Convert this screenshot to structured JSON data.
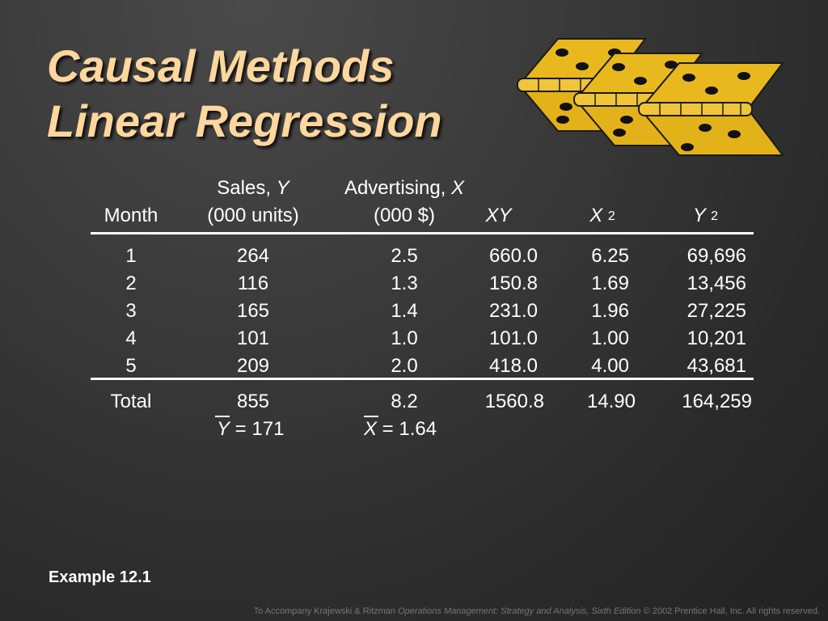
{
  "slide": {
    "title_line1": "Causal Methods",
    "title_line2": "Linear Regression",
    "example": "Example 12.1",
    "footer_prefix": "To Accompany Krajewski & Ritzman ",
    "footer_book": "Operations Management: Strategy and Analysis, Sixth Edition",
    "footer_suffix": " © 2002 Prentice Hall, Inc. All rights reserved.",
    "colors": {
      "title": "#ffd79e",
      "hinge_fill": "#e8b81e",
      "background": "#3b3b3b"
    },
    "hinge_icon": "hinge-icon"
  },
  "table": {
    "headers": {
      "month": "Month",
      "sales_line1": "Sales, ",
      "sales_var": "Y",
      "sales_line2": "(000 units)",
      "adv_line1": "Advertising, ",
      "adv_var": "X",
      "adv_line2": "(000 $)",
      "xy": "XY",
      "x2_base": "X ",
      "x2_exp": "2",
      "y2_base": "Y ",
      "y2_exp": "2"
    },
    "rows": [
      {
        "month": "1",
        "sales": "264",
        "adv": "2.5",
        "xy": "660.0",
        "x2": "6.25",
        "y2": "69,696"
      },
      {
        "month": "2",
        "sales": "116",
        "adv": "1.3",
        "xy": "150.8",
        "x2": "1.69",
        "y2": "13,456"
      },
      {
        "month": "3",
        "sales": "165",
        "adv": "1.4",
        "xy": "231.0",
        "x2": "1.96",
        "y2": "27,225"
      },
      {
        "month": "4",
        "sales": "101",
        "adv": "1.0",
        "xy": "101.0",
        "x2": "1.00",
        "y2": "10,201"
      },
      {
        "month": "5",
        "sales": "209",
        "adv": "2.0",
        "xy": "418.0",
        "x2": "4.00",
        "y2": "43,681"
      }
    ],
    "totals": {
      "label": "Total",
      "sales": "855",
      "adv": "8.2",
      "xy": "1560.8",
      "x2": "14.90",
      "y2": "164,259"
    },
    "means": {
      "y_var": "Y",
      "y_value": " = 171",
      "x_var": "X",
      "x_value": " = 1.64"
    }
  }
}
